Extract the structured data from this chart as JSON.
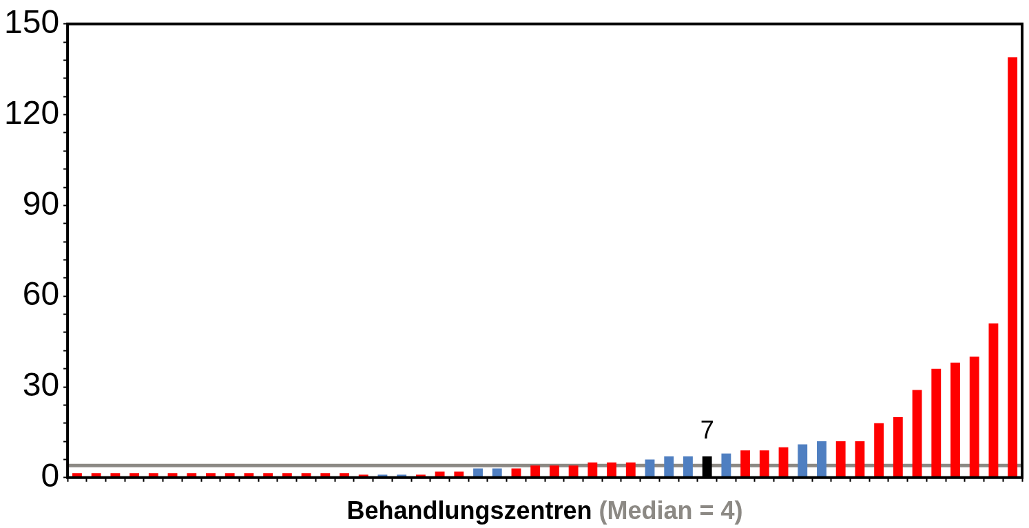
{
  "chart_data": {
    "type": "bar",
    "xlabel": "Behandlungszentren",
    "categories": [
      null,
      null,
      null,
      null,
      null,
      null,
      null,
      null,
      null,
      null,
      null,
      null,
      null,
      null,
      null,
      null,
      null,
      null,
      null,
      null,
      null,
      null,
      null,
      null,
      null,
      null,
      null,
      null,
      null,
      null,
      null,
      null,
      null,
      null,
      null,
      null,
      null,
      null,
      null,
      null,
      null,
      null,
      null,
      null,
      null,
      null,
      null,
      null,
      null,
      null
    ],
    "values": [
      1.5,
      1.5,
      1.5,
      1.5,
      1.5,
      1.5,
      1.5,
      1.5,
      1.5,
      1.5,
      1.5,
      1.5,
      1.5,
      1.5,
      1.5,
      1,
      1,
      1,
      1,
      2,
      2,
      3,
      3,
      3,
      4,
      4,
      4,
      5,
      5,
      5,
      6,
      7,
      7,
      7,
      8,
      9,
      9,
      10,
      11,
      12,
      12,
      12,
      18,
      20,
      29,
      36,
      38,
      40,
      51,
      139
    ],
    "colors": [
      "#ff0000",
      "#ff0000",
      "#ff0000",
      "#ff0000",
      "#ff0000",
      "#ff0000",
      "#ff0000",
      "#ff0000",
      "#ff0000",
      "#ff0000",
      "#ff0000",
      "#ff0000",
      "#ff0000",
      "#ff0000",
      "#ff0000",
      "#ff0000",
      "#4f7fc1",
      "#4f7fc1",
      "#ff0000",
      "#ff0000",
      "#ff0000",
      "#4f7fc1",
      "#4f7fc1",
      "#ff0000",
      "#ff0000",
      "#ff0000",
      "#ff0000",
      "#ff0000",
      "#ff0000",
      "#ff0000",
      "#4f7fc1",
      "#4f7fc1",
      "#4f7fc1",
      "#000000",
      "#4f7fc1",
      "#ff0000",
      "#ff0000",
      "#ff0000",
      "#4f7fc1",
      "#4f7fc1",
      "#ff0000",
      "#ff0000",
      "#ff0000",
      "#ff0000",
      "#ff0000",
      "#ff0000",
      "#ff0000",
      "#ff0000",
      "#ff0000",
      "#ff0000"
    ],
    "value_labels": [
      null,
      null,
      null,
      null,
      null,
      null,
      null,
      null,
      null,
      null,
      null,
      null,
      null,
      null,
      null,
      null,
      null,
      null,
      null,
      null,
      null,
      null,
      null,
      null,
      null,
      null,
      null,
      null,
      null,
      null,
      null,
      null,
      null,
      "7",
      null,
      null,
      null,
      null,
      null,
      null,
      null,
      null,
      null,
      null,
      null,
      null,
      null,
      null,
      null,
      null
    ],
    "ylim": [
      0,
      150
    ],
    "yticks": [
      0,
      {
        "value": 6,
        "label": null
      },
      {
        "value": 12,
        "label": null
      },
      {
        "value": 18,
        "label": null
      },
      {
        "value": 24,
        "label": null
      },
      30,
      {
        "value": 36,
        "label": null
      },
      {
        "value": 42,
        "label": null
      },
      {
        "value": 48,
        "label": null
      },
      {
        "value": 54,
        "label": null
      },
      60,
      {
        "value": 66,
        "label": null
      },
      {
        "value": 72,
        "label": null
      },
      {
        "value": 78,
        "label": null
      },
      {
        "value": 84,
        "label": null
      },
      90,
      {
        "value": 96,
        "label": null
      },
      {
        "value": 102,
        "label": null
      },
      {
        "value": 108,
        "label": null
      },
      {
        "value": 114,
        "label": null
      },
      120,
      {
        "value": 126,
        "label": null
      },
      {
        "value": 132,
        "label": null
      },
      {
        "value": 138,
        "label": null
      },
      {
        "value": 144,
        "label": null
      },
      150
    ],
    "ref_lines": [
      {
        "axis": "y",
        "value": 4,
        "label": "(Median = 4)",
        "color": "#8c8984"
      }
    ],
    "grid": false,
    "legend": false
  }
}
